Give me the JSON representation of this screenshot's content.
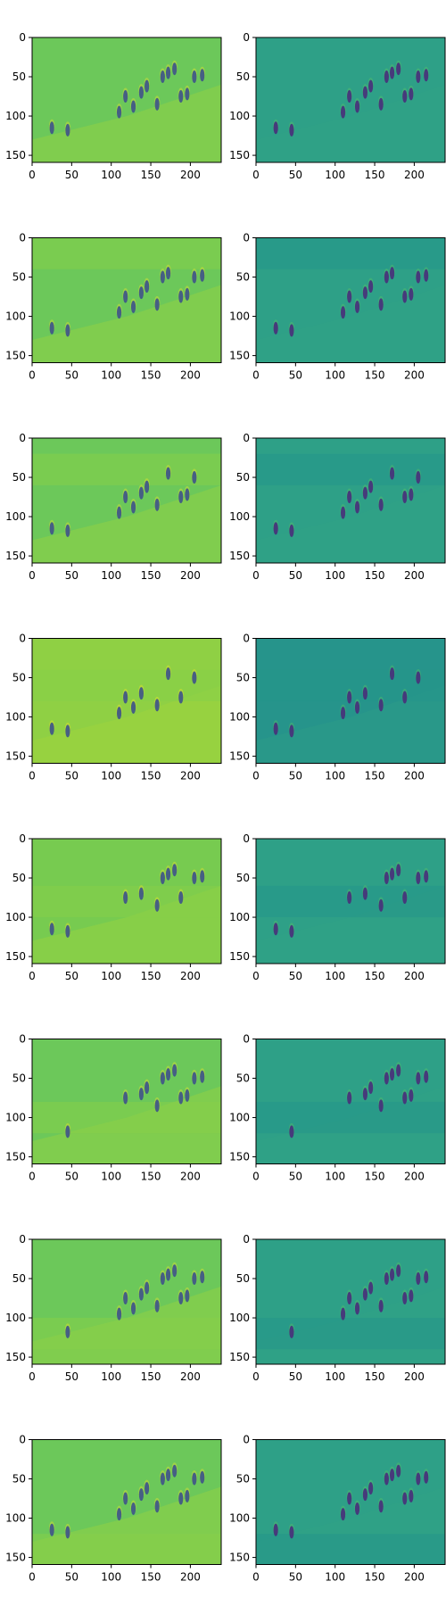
{
  "chart_data": {
    "type": "heatmap",
    "layout": {
      "rows": 8,
      "cols": 2
    },
    "colormap": "viridis",
    "axes_defaults": {
      "xlim": [
        0,
        239
      ],
      "ylim": [
        159,
        0
      ],
      "xticks": [
        0,
        50,
        100,
        150,
        200
      ],
      "yticks": [
        0,
        50,
        100,
        150
      ],
      "grid": false
    },
    "panels": [
      {
        "row": 0,
        "col": 0,
        "background": "#6cc85a",
        "band": null
      },
      {
        "row": 0,
        "col": 1,
        "background": "#2ea087",
        "band": null
      },
      {
        "row": 1,
        "col": 0,
        "background": "#6cc85a",
        "band": [
          0,
          40
        ]
      },
      {
        "row": 1,
        "col": 1,
        "background": "#2ea087",
        "band": [
          0,
          40
        ]
      },
      {
        "row": 2,
        "col": 0,
        "background": "#6cc85a",
        "band": [
          20,
          60
        ]
      },
      {
        "row": 2,
        "col": 1,
        "background": "#2ea087",
        "band": [
          20,
          60
        ]
      },
      {
        "row": 3,
        "col": 0,
        "background": "#8fd044",
        "band": [
          40,
          80
        ]
      },
      {
        "row": 3,
        "col": 1,
        "background": "#26948b",
        "band": [
          40,
          80
        ]
      },
      {
        "row": 4,
        "col": 0,
        "background": "#77cb50",
        "band": [
          60,
          100
        ]
      },
      {
        "row": 4,
        "col": 1,
        "background": "#2ea087",
        "band": [
          60,
          100
        ]
      },
      {
        "row": 5,
        "col": 0,
        "background": "#6cc85a",
        "band": [
          80,
          120
        ]
      },
      {
        "row": 5,
        "col": 1,
        "background": "#2ea087",
        "band": [
          80,
          120
        ]
      },
      {
        "row": 6,
        "col": 0,
        "background": "#6cc85a",
        "band": [
          100,
          140
        ]
      },
      {
        "row": 6,
        "col": 1,
        "background": "#2ea087",
        "band": [
          100,
          140
        ]
      },
      {
        "row": 7,
        "col": 0,
        "background": "#6cc85a",
        "band": [
          120,
          160
        ]
      },
      {
        "row": 7,
        "col": 1,
        "background": "#2ea087",
        "band": [
          120,
          160
        ]
      }
    ],
    "figures_approx": [
      {
        "x": 110,
        "y": 95
      },
      {
        "x": 118,
        "y": 75
      },
      {
        "x": 128,
        "y": 88
      },
      {
        "x": 138,
        "y": 70
      },
      {
        "x": 145,
        "y": 62
      },
      {
        "x": 158,
        "y": 85
      },
      {
        "x": 165,
        "y": 50
      },
      {
        "x": 172,
        "y": 45
      },
      {
        "x": 180,
        "y": 40
      },
      {
        "x": 188,
        "y": 75
      },
      {
        "x": 196,
        "y": 72
      },
      {
        "x": 205,
        "y": 50
      },
      {
        "x": 215,
        "y": 48
      },
      {
        "x": 45,
        "y": 118
      },
      {
        "x": 25,
        "y": 115
      }
    ]
  }
}
